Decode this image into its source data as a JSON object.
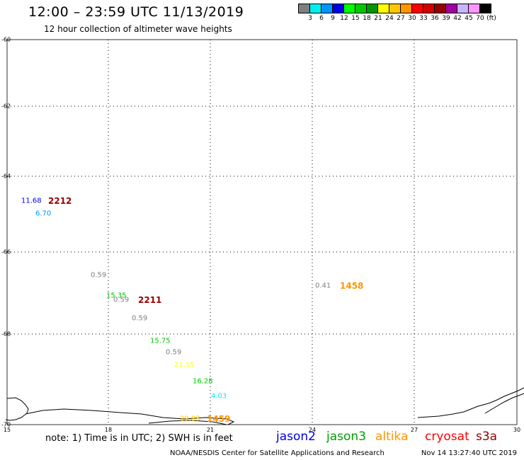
{
  "header": {
    "title": "12:00 – 23:59 UTC 11/13/2019",
    "subtitle": "12 hour collection of altimeter wave heights"
  },
  "color_scale": {
    "colors": [
      "#7f7f7f",
      "#00f0f0",
      "#0096ff",
      "#0000e6",
      "#00ff00",
      "#00c800",
      "#009600",
      "#ffff00",
      "#ffc800",
      "#ff9600",
      "#ff0000",
      "#d20000",
      "#960000",
      "#a000a0",
      "#c8b4ff",
      "#ff96ff",
      "#000000"
    ],
    "labels": [
      "3",
      "6",
      "9",
      "12",
      "15",
      "18",
      "21",
      "24",
      "27",
      "30",
      "33",
      "36",
      "39",
      "42",
      "45",
      "70",
      "(ft)"
    ]
  },
  "map": {
    "y_ticks": [
      "-60",
      "-62",
      "-64",
      "-66",
      "-68",
      "-70"
    ],
    "x_ticks": [
      "15",
      "18",
      "21",
      "24",
      "27",
      "30"
    ]
  },
  "observations": [
    {
      "text": "11.68",
      "color": "#0000e6"
    },
    {
      "text": "6.70",
      "color": "#0096ff"
    },
    {
      "text": "0.59",
      "color": "#7f7f7f"
    },
    {
      "text": "15.35",
      "color": "#00c800"
    },
    {
      "text": "0.59",
      "color": "#7f7f7f"
    },
    {
      "text": "0.59",
      "color": "#7f7f7f"
    },
    {
      "text": "15.75",
      "color": "#00c800"
    },
    {
      "text": "0.59",
      "color": "#7f7f7f"
    },
    {
      "text": "21.15",
      "color": "#ffff00"
    },
    {
      "text": "16.28",
      "color": "#00c800"
    },
    {
      "text": "4.03",
      "color": "#00f0f0"
    },
    {
      "text": "29.83",
      "color": "#ffc800"
    },
    {
      "text": "0.41",
      "color": "#7f7f7f"
    }
  ],
  "time_labels": [
    {
      "text": "2212",
      "color": "#960000"
    },
    {
      "text": "2211",
      "color": "#960000"
    },
    {
      "text": "1459",
      "color": "#ff9600"
    },
    {
      "text": "1458",
      "color": "#ff9600"
    }
  ],
  "note": "note: 1) Time is in UTC; 2) SWH is in feet",
  "legend": [
    {
      "name": "jason2",
      "color": "#0000e6"
    },
    {
      "name": "jason3",
      "color": "#00a000"
    },
    {
      "name": "altika",
      "color": "#ff9600"
    },
    {
      "name": "cryosat",
      "color": "#ff0000"
    },
    {
      "name": "s3a",
      "color": "#960000"
    }
  ],
  "footer": {
    "left": "NOAA/NESDIS Center for Satellite Applications and Research",
    "right": "Nov 14 13:27:40 UTC 2019"
  }
}
